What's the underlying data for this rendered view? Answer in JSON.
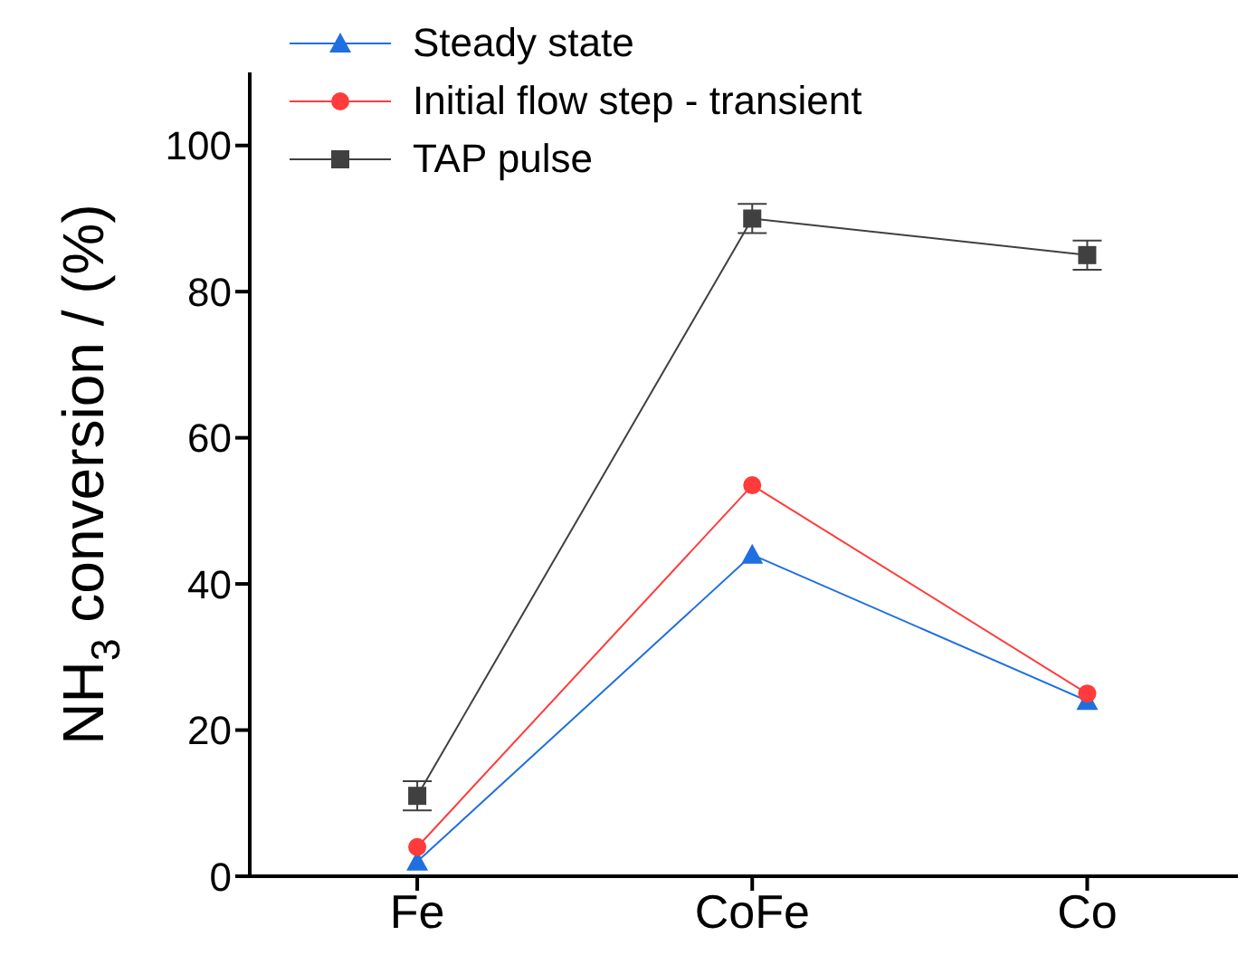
{
  "chart_data": {
    "type": "line",
    "ylabel": "NH$_{3}$ conversion / (%)",
    "categories": [
      "Fe",
      "CoFe",
      "Co"
    ],
    "ylim": [
      0,
      110
    ],
    "yticks": [
      0,
      20,
      40,
      60,
      80,
      100
    ],
    "grid": false,
    "legend": "top left",
    "series": [
      {
        "name": "Steady state",
        "color": "#1f6fe0",
        "marker": "triangle",
        "values": [
          2,
          44,
          24
        ]
      },
      {
        "name": "Initial flow step - transient",
        "color": "#ff3b3b",
        "marker": "circle",
        "values": [
          4,
          53.5,
          25
        ]
      },
      {
        "name": "TAP pulse",
        "color": "#404040",
        "marker": "square",
        "values": [
          11,
          90,
          85
        ],
        "errors": [
          2,
          2,
          2
        ]
      }
    ]
  }
}
